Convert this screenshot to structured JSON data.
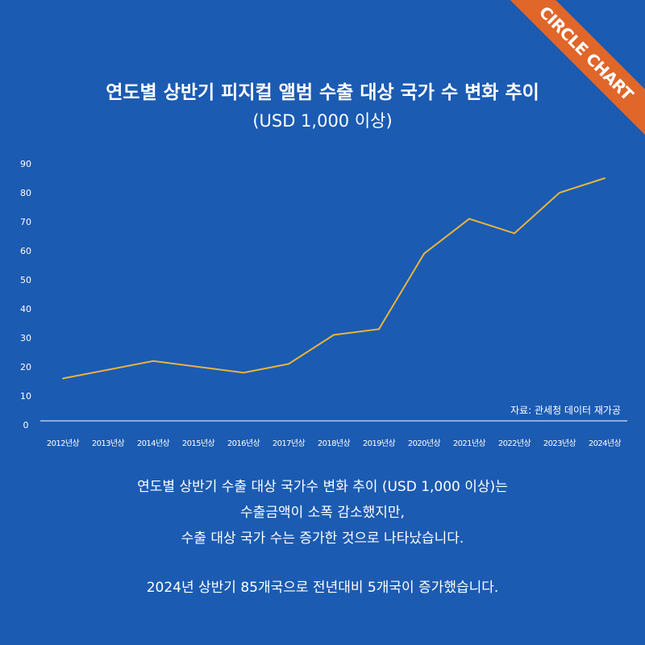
{
  "corner_badge": "CIRCLE CHART",
  "title": "연도별 상반기 피지컬 앨범 수출 대상 국가 수 변화 추이",
  "subtitle": "(USD 1,000 이상)",
  "source_note": "자료: 관세청 데이터 재가공",
  "description": {
    "line1": "연도별 상반기 수출 대상 국가수 변화 추이 (USD 1,000 이상)는",
    "line2": "수출금액이 소폭 감소했지만,",
    "line3": "수출 대상 국가 수는 증가한 것으로 나타났습니다.",
    "line4": "2024년 상반기 85개국으로 전년대비 5개국이 증가했습니다."
  },
  "colors": {
    "background": "#1b5bb2",
    "line": "#e8b43c",
    "axis": "#ffffff",
    "badge": "#e0662a"
  },
  "chart_data": {
    "type": "line",
    "categories": [
      "2012년상",
      "2013년상",
      "2014년상",
      "2015년상",
      "2016년상",
      "2017년상",
      "2018년상",
      "2019년상",
      "2020년상",
      "2021년상",
      "2022년상",
      "2023년상",
      "2024년상"
    ],
    "values": [
      16,
      19,
      22,
      20,
      18,
      21,
      31,
      33,
      59,
      71,
      66,
      80,
      85
    ],
    "yticks": [
      "0",
      "10",
      "20",
      "30",
      "40",
      "50",
      "60",
      "70",
      "80",
      "90"
    ],
    "ylim": [
      0,
      90
    ],
    "grid": false,
    "legend": "none"
  }
}
